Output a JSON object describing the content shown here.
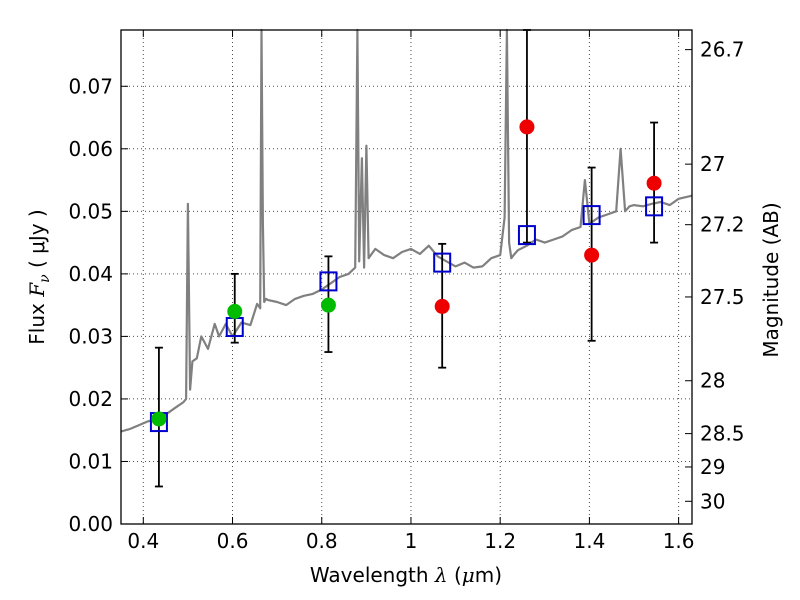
{
  "chart_data": {
    "type": "scatter",
    "xlabel_prefix": "Wavelength ",
    "xlabel_symbol": "λ",
    "xlabel_unit": "(",
    "xlabel_mu": "μ",
    "xlabel_unit_end": "m)",
    "ylabel_prefix": "Flux ",
    "ylabel_symbol": "F",
    "ylabel_sub": "ν",
    "ylabel_unit": " ( μJy )",
    "y2label": "Magnitude (AB)",
    "xlim": [
      0.35,
      1.63
    ],
    "ylim": [
      0.0,
      0.079
    ],
    "grid": true,
    "x_ticks": [
      0.4,
      0.6,
      0.8,
      1.0,
      1.2,
      1.4,
      1.6
    ],
    "x_tick_labels": [
      "0.4",
      "0.6",
      "0.8",
      "1",
      "1.2",
      "1.4",
      "1.6"
    ],
    "y_ticks": [
      0.0,
      0.01,
      0.02,
      0.03,
      0.04,
      0.05,
      0.06,
      0.07
    ],
    "y_tick_labels": [
      "0.00",
      "0.01",
      "0.02",
      "0.03",
      "0.04",
      "0.05",
      "0.06",
      "0.07"
    ],
    "y2_ticks": [
      26.7,
      27,
      27.2,
      27.5,
      28,
      28.5,
      29,
      30
    ],
    "y2_tick_labels": [
      "26.7",
      "27",
      "27.2",
      "27.5",
      "28",
      "28.5",
      "29",
      "30"
    ],
    "colors": {
      "spectrum": "#808080",
      "model": "#0000cc",
      "green": "#00bb00",
      "red": "#ee0000",
      "errorbar": "#000000"
    },
    "spectrum": {
      "x": [
        0.35,
        0.37,
        0.39,
        0.41,
        0.43,
        0.45,
        0.47,
        0.49,
        0.496,
        0.5,
        0.505,
        0.51,
        0.52,
        0.53,
        0.545,
        0.56,
        0.57,
        0.585,
        0.6,
        0.62,
        0.64,
        0.655,
        0.662,
        0.665,
        0.668,
        0.671,
        0.675,
        0.68,
        0.7,
        0.72,
        0.74,
        0.76,
        0.78,
        0.8,
        0.82,
        0.84,
        0.86,
        0.875,
        0.88,
        0.884,
        0.89,
        0.895,
        0.9,
        0.905,
        0.92,
        0.94,
        0.96,
        0.98,
        1.0,
        1.02,
        1.04,
        1.06,
        1.08,
        1.1,
        1.12,
        1.14,
        1.16,
        1.18,
        1.2,
        1.21,
        1.215,
        1.22,
        1.225,
        1.23,
        1.24,
        1.26,
        1.28,
        1.3,
        1.32,
        1.34,
        1.36,
        1.38,
        1.39,
        1.4,
        1.42,
        1.44,
        1.46,
        1.47,
        1.48,
        1.49,
        1.5,
        1.52,
        1.54,
        1.56,
        1.58,
        1.6,
        1.63
      ],
      "y": [
        0.0148,
        0.0152,
        0.0158,
        0.0164,
        0.0168,
        0.0175,
        0.0185,
        0.0195,
        0.02,
        0.0512,
        0.0215,
        0.026,
        0.0265,
        0.03,
        0.028,
        0.032,
        0.03,
        0.032,
        0.03,
        0.0322,
        0.0318,
        0.0352,
        0.0345,
        0.079,
        0.048,
        0.0355,
        0.036,
        0.0358,
        0.0355,
        0.035,
        0.036,
        0.0365,
        0.0368,
        0.0375,
        0.0385,
        0.0395,
        0.04,
        0.041,
        0.079,
        0.042,
        0.0585,
        0.041,
        0.0605,
        0.0425,
        0.044,
        0.043,
        0.0425,
        0.0435,
        0.044,
        0.0432,
        0.0445,
        0.0428,
        0.042,
        0.0412,
        0.0418,
        0.041,
        0.0412,
        0.0425,
        0.043,
        0.049,
        0.079,
        0.045,
        0.0425,
        0.043,
        0.0438,
        0.0445,
        0.0455,
        0.045,
        0.0455,
        0.046,
        0.047,
        0.0475,
        0.055,
        0.048,
        0.049,
        0.0495,
        0.05,
        0.06,
        0.05,
        0.0508,
        0.051,
        0.0508,
        0.0512,
        0.0515,
        0.051,
        0.052,
        0.0525
      ]
    },
    "model_points": {
      "x": [
        0.435,
        0.605,
        0.815,
        1.07,
        1.26,
        1.405,
        1.545
      ],
      "y": [
        0.0163,
        0.0315,
        0.0388,
        0.0418,
        0.0462,
        0.0494,
        0.0508
      ]
    },
    "green_points": {
      "x": [
        0.435,
        0.605,
        0.815
      ],
      "y": [
        0.0168,
        0.034,
        0.035
      ],
      "err_low": [
        0.006,
        0.029,
        0.0275
      ],
      "err_high": [
        0.0282,
        0.04,
        0.0428
      ]
    },
    "red_points": {
      "x": [
        1.07,
        1.26,
        1.405,
        1.545
      ],
      "y": [
        0.0348,
        0.0635,
        0.043,
        0.0545
      ],
      "err_low": [
        0.025,
        0.045,
        0.0293,
        0.045
      ],
      "err_high": [
        0.0448,
        0.079,
        0.057,
        0.0642
      ]
    }
  }
}
